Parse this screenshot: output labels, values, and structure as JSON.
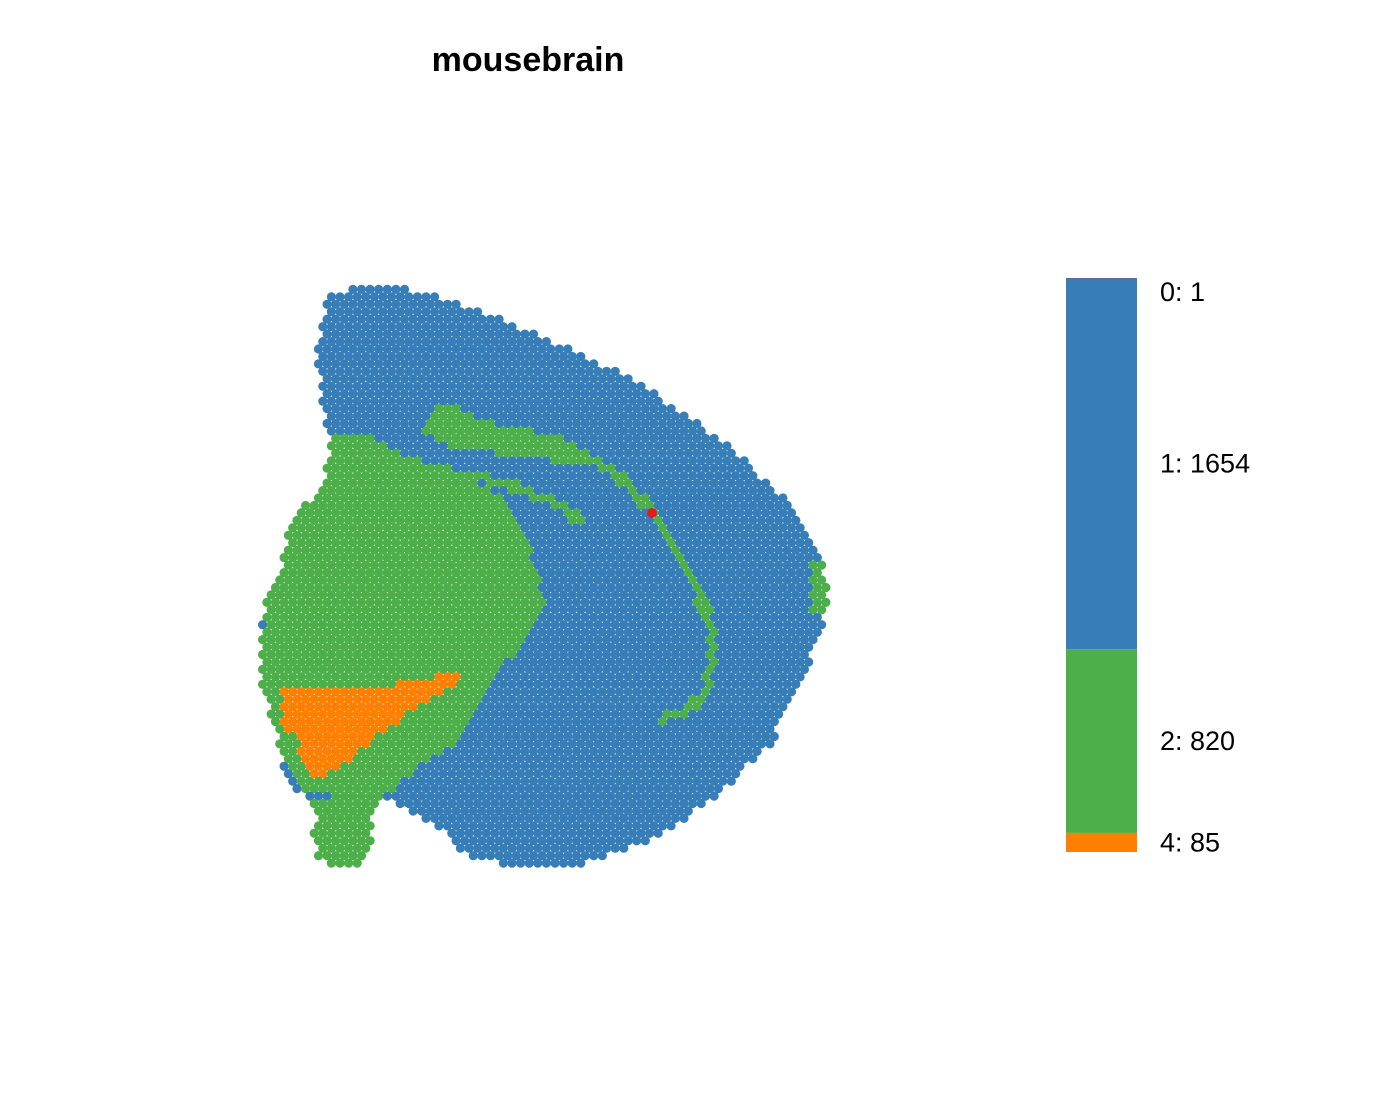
{
  "chart_data": {
    "type": "scatter",
    "title": "mousebrain",
    "xlabel": "",
    "ylabel": "",
    "axes_shown": false,
    "grid": false,
    "legend_position": "right",
    "legend_style": "stacked proportional color bar",
    "clusters": [
      {
        "id": "0",
        "label": "0: 1",
        "count": 1,
        "color": "#e41a1c"
      },
      {
        "id": "1",
        "label": "1: 1654",
        "count": 1654,
        "color": "#377eb8"
      },
      {
        "id": "2",
        "label": "2: 820",
        "count": 820,
        "color": "#4daf4a"
      },
      {
        "id": "4",
        "label": "4: 85",
        "count": 85,
        "color": "#ff7f00"
      }
    ]
  }
}
